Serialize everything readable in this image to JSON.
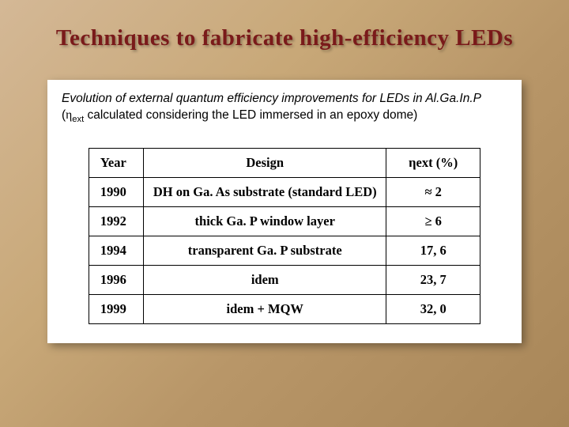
{
  "title": "Techniques to fabricate high-efficiency LEDs",
  "caption": {
    "line1_pre": "Evolution of external quantum efficiency improvements for LEDs in ",
    "material": "Al.Ga.In.P",
    "line2_pre": "(",
    "eta_sym": "η",
    "eta_sub": "ext",
    "line2_post": " calculated considering the LED immersed in an epoxy dome)"
  },
  "table": {
    "headers": {
      "year": "Year",
      "design": "Design",
      "eff_sym": "η",
      "eff_sub": "ext",
      "eff_unit": " (%)"
    },
    "rows": [
      {
        "year": "1990",
        "design": "DH on Ga. As substrate (standard LED)",
        "eff": "≈ 2"
      },
      {
        "year": "1992",
        "design": "thick Ga. P window layer",
        "eff": "≥ 6"
      },
      {
        "year": "1994",
        "design": "transparent Ga. P substrate",
        "eff": "17, 6"
      },
      {
        "year": "1996",
        "design": "idem",
        "eff": "23, 7"
      },
      {
        "year": "1999",
        "design": "idem + MQW",
        "eff": "32, 0"
      }
    ],
    "col_widths": [
      "14%",
      "62%",
      "24%"
    ],
    "colors": {
      "title_color": "#7a1a1a",
      "bg_gradient_start": "#d4b896",
      "bg_gradient_end": "#a88658",
      "box_bg": "#ffffff",
      "border": "#000000",
      "text": "#000000"
    },
    "fonts": {
      "title_family": "Comic Sans MS",
      "title_size_pt": 22,
      "caption_family": "Arial",
      "caption_size_pt": 12,
      "table_family": "Times New Roman",
      "table_size_pt": 12.5,
      "table_weight": "bold"
    }
  }
}
